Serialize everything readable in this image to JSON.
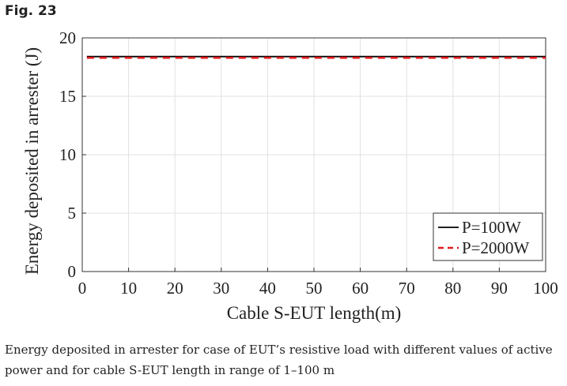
{
  "figure": {
    "label": "Fig. 23",
    "caption": "Energy deposited in arrester for case of EUT’s resistive load with different values of active power and for cable S-EUT length in range of 1–100 m"
  },
  "chart_data": {
    "type": "line",
    "xlabel": "Cable S-EUT length(m)",
    "ylabel": "Energy deposited in arrester (J)",
    "xlim": [
      0,
      100
    ],
    "ylim": [
      0,
      20
    ],
    "xticks": [
      0,
      10,
      20,
      30,
      40,
      50,
      60,
      70,
      80,
      90,
      100
    ],
    "yticks": [
      0,
      5,
      10,
      15,
      20
    ],
    "grid": true,
    "legend_position": "bottom-right",
    "series": [
      {
        "name": "P=100W",
        "color": "#000000",
        "style": "solid",
        "x": [
          1,
          100
        ],
        "y": [
          18.4,
          18.4
        ]
      },
      {
        "name": "P=2000W",
        "color": "#e31a1c",
        "style": "dashed",
        "x": [
          1,
          100
        ],
        "y": [
          18.3,
          18.3
        ]
      }
    ]
  }
}
